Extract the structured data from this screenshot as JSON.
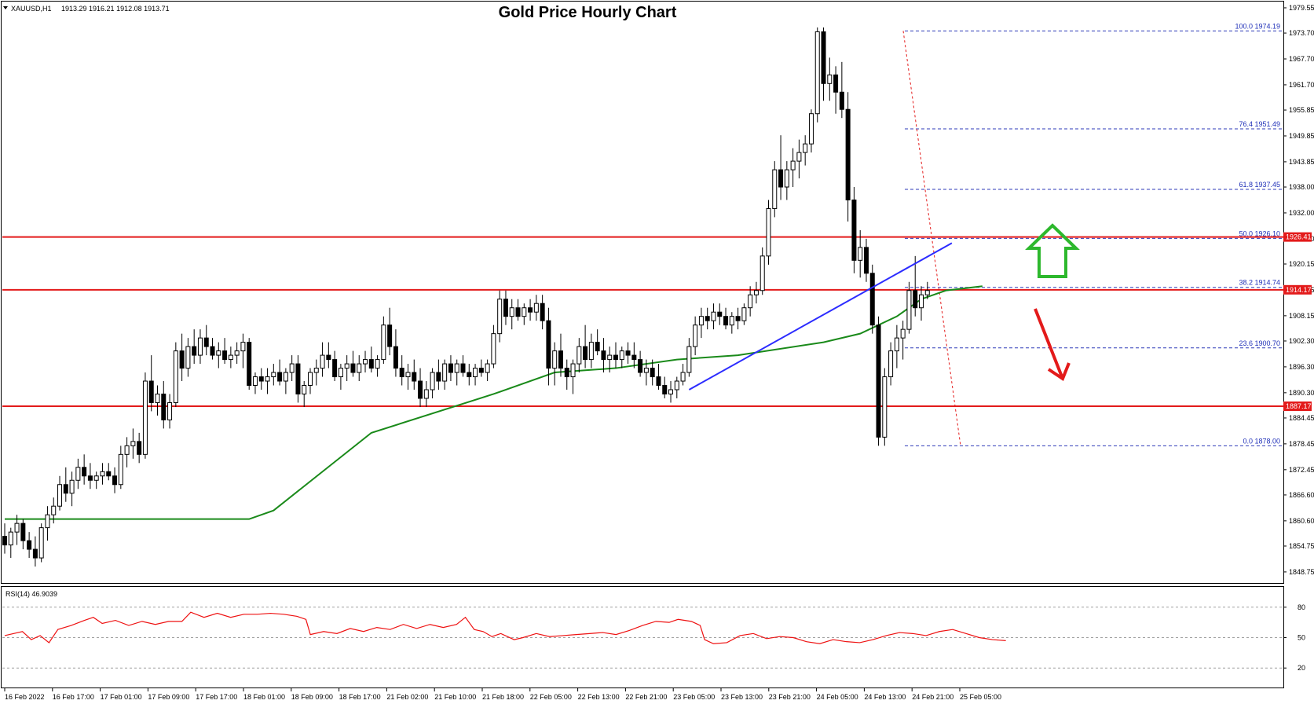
{
  "header": {
    "symbol_label": "XAUUSD,H1",
    "ohlc_label": "1913.29 1916.21 1912.08 1913.71",
    "title": "Gold Price Hourly Chart"
  },
  "rsi_panel": {
    "label": "RSI(14) 46.9039",
    "levels": [
      "80",
      "50",
      "20"
    ]
  },
  "colors": {
    "bull": "#ffffff",
    "bear": "#000000",
    "ma": "#1a8a1a",
    "trendline": "#2c2cff",
    "horizontal": "#e31a1a",
    "fib": "#2e3ab8",
    "rsi": "#ee1111",
    "up_arrow": "#2db82d",
    "down_arrow": "#e31a1a"
  },
  "chart_data": {
    "type": "candlestick",
    "symbol": "XAUUSD",
    "timeframe": "H1",
    "title": "Gold Price Hourly Chart",
    "ylim": [
      1846.0,
      1981.0
    ],
    "price_ticks": [
      "1979.55",
      "1973.70",
      "1967.70",
      "1961.70",
      "1955.85",
      "1949.85",
      "1943.85",
      "1938.00",
      "1932.00",
      "1926.00",
      "1920.15",
      "1914.15",
      "1908.15",
      "1902.30",
      "1896.30",
      "1890.30",
      "1884.45",
      "1878.45",
      "1872.45",
      "1866.60",
      "1860.60",
      "1854.75",
      "1848.75"
    ],
    "time_labels": [
      "16 Feb 2022",
      "16 Feb 17:00",
      "17 Feb 01:00",
      "17 Feb 09:00",
      "17 Feb 17:00",
      "18 Feb 01:00",
      "18 Feb 09:00",
      "18 Feb 17:00",
      "21 Feb 02:00",
      "21 Feb 10:00",
      "21 Feb 18:00",
      "22 Feb 05:00",
      "22 Feb 13:00",
      "22 Feb 21:00",
      "23 Feb 05:00",
      "23 Feb 13:00",
      "23 Feb 21:00",
      "24 Feb 05:00",
      "24 Feb 13:00",
      "24 Feb 21:00",
      "25 Feb 05:00"
    ],
    "ohlc": [
      [
        1857,
        1860,
        1853,
        1855
      ],
      [
        1855,
        1859,
        1852,
        1858
      ],
      [
        1858,
        1862,
        1855,
        1860
      ],
      [
        1860,
        1861,
        1854,
        1856
      ],
      [
        1856,
        1858,
        1852,
        1854
      ],
      [
        1854,
        1857,
        1850,
        1852
      ],
      [
        1852,
        1860,
        1851,
        1859
      ],
      [
        1859,
        1864,
        1856,
        1862
      ],
      [
        1862,
        1866,
        1860,
        1864
      ],
      [
        1864,
        1871,
        1863,
        1869
      ],
      [
        1869,
        1873,
        1865,
        1867
      ],
      [
        1867,
        1872,
        1864,
        1870
      ],
      [
        1870,
        1875,
        1868,
        1873
      ],
      [
        1873,
        1876,
        1869,
        1871
      ],
      [
        1871,
        1874,
        1868,
        1870
      ],
      [
        1870,
        1872,
        1868,
        1871
      ],
      [
        1871,
        1874,
        1869,
        1872
      ],
      [
        1872,
        1874,
        1870,
        1871
      ],
      [
        1871,
        1873,
        1867,
        1869
      ],
      [
        1869,
        1878,
        1868,
        1876
      ],
      [
        1876,
        1880,
        1873,
        1878
      ],
      [
        1878,
        1882,
        1875,
        1879
      ],
      [
        1879,
        1881,
        1874,
        1876
      ],
      [
        1876,
        1895,
        1875,
        1893
      ],
      [
        1893,
        1899,
        1886,
        1888
      ],
      [
        1888,
        1892,
        1885,
        1890
      ],
      [
        1890,
        1893,
        1882,
        1884
      ],
      [
        1884,
        1890,
        1882,
        1888
      ],
      [
        1888,
        1902,
        1887,
        1900
      ],
      [
        1900,
        1904,
        1893,
        1896
      ],
      [
        1896,
        1903,
        1894,
        1901
      ],
      [
        1901,
        1905,
        1897,
        1899
      ],
      [
        1899,
        1905,
        1897,
        1903
      ],
      [
        1903,
        1906,
        1899,
        1901
      ],
      [
        1901,
        1903,
        1898,
        1899
      ],
      [
        1899,
        1902,
        1896,
        1900
      ],
      [
        1900,
        1903,
        1897,
        1898
      ],
      [
        1898,
        1901,
        1896,
        1899
      ],
      [
        1899,
        1902,
        1897,
        1900
      ],
      [
        1900,
        1904,
        1896,
        1902
      ],
      [
        1902,
        1903,
        1891,
        1892
      ],
      [
        1892,
        1895,
        1890,
        1894
      ],
      [
        1894,
        1896,
        1891,
        1893
      ],
      [
        1893,
        1896,
        1890,
        1894
      ],
      [
        1894,
        1897,
        1892,
        1895
      ],
      [
        1895,
        1898,
        1892,
        1893
      ],
      [
        1893,
        1896,
        1890,
        1895
      ],
      [
        1895,
        1899,
        1893,
        1897
      ],
      [
        1897,
        1899,
        1888,
        1890
      ],
      [
        1890,
        1893,
        1887,
        1892
      ],
      [
        1892,
        1896,
        1890,
        1895
      ],
      [
        1895,
        1898,
        1892,
        1896
      ],
      [
        1896,
        1902,
        1894,
        1899
      ],
      [
        1899,
        1902,
        1896,
        1898
      ],
      [
        1898,
        1900,
        1893,
        1894
      ],
      [
        1894,
        1897,
        1891,
        1896
      ],
      [
        1896,
        1899,
        1893,
        1897
      ],
      [
        1897,
        1900,
        1894,
        1895
      ],
      [
        1895,
        1899,
        1893,
        1897
      ],
      [
        1897,
        1900,
        1895,
        1898
      ],
      [
        1898,
        1901,
        1895,
        1896
      ],
      [
        1896,
        1899,
        1894,
        1898
      ],
      [
        1898,
        1908,
        1897,
        1906
      ],
      [
        1906,
        1910,
        1899,
        1901
      ],
      [
        1901,
        1905,
        1894,
        1896
      ],
      [
        1896,
        1899,
        1892,
        1894
      ],
      [
        1894,
        1897,
        1891,
        1895
      ],
      [
        1895,
        1898,
        1891,
        1893
      ],
      [
        1893,
        1896,
        1887,
        1889
      ],
      [
        1889,
        1893,
        1887,
        1891
      ],
      [
        1891,
        1896,
        1889,
        1895
      ],
      [
        1895,
        1898,
        1891,
        1893
      ],
      [
        1893,
        1898,
        1891,
        1897
      ],
      [
        1897,
        1899,
        1893,
        1895
      ],
      [
        1895,
        1898,
        1892,
        1897
      ],
      [
        1897,
        1899,
        1894,
        1895
      ],
      [
        1895,
        1897,
        1892,
        1894
      ],
      [
        1894,
        1897,
        1892,
        1896
      ],
      [
        1896,
        1898,
        1894,
        1895
      ],
      [
        1895,
        1898,
        1893,
        1897
      ],
      [
        1897,
        1906,
        1896,
        1904
      ],
      [
        1904,
        1914,
        1902,
        1912
      ],
      [
        1912,
        1914,
        1906,
        1908
      ],
      [
        1908,
        1912,
        1905,
        1910
      ],
      [
        1910,
        1912,
        1907,
        1908
      ],
      [
        1908,
        1911,
        1906,
        1910
      ],
      [
        1910,
        1912,
        1907,
        1909
      ],
      [
        1909,
        1913,
        1907,
        1911
      ],
      [
        1911,
        1913,
        1905,
        1907
      ],
      [
        1907,
        1910,
        1892,
        1896
      ],
      [
        1896,
        1902,
        1892,
        1900
      ],
      [
        1900,
        1904,
        1894,
        1896
      ],
      [
        1896,
        1898,
        1891,
        1894
      ],
      [
        1894,
        1898,
        1890,
        1897
      ],
      [
        1897,
        1903,
        1895,
        1901
      ],
      [
        1901,
        1906,
        1896,
        1898
      ],
      [
        1898,
        1904,
        1896,
        1902
      ],
      [
        1902,
        1905,
        1899,
        1900
      ],
      [
        1900,
        1903,
        1895,
        1898
      ],
      [
        1898,
        1901,
        1895,
        1899
      ],
      [
        1899,
        1902,
        1896,
        1898
      ],
      [
        1898,
        1901,
        1896,
        1900
      ],
      [
        1900,
        1902,
        1897,
        1899
      ],
      [
        1899,
        1902,
        1896,
        1898
      ],
      [
        1898,
        1900,
        1894,
        1895
      ],
      [
        1895,
        1898,
        1892,
        1896
      ],
      [
        1896,
        1898,
        1892,
        1894
      ],
      [
        1894,
        1897,
        1891,
        1892
      ],
      [
        1892,
        1894,
        1889,
        1890
      ],
      [
        1890,
        1893,
        1888,
        1891
      ],
      [
        1891,
        1894,
        1889,
        1893
      ],
      [
        1893,
        1897,
        1892,
        1895
      ],
      [
        1895,
        1903,
        1894,
        1901
      ],
      [
        1901,
        1908,
        1899,
        1906
      ],
      [
        1906,
        1910,
        1903,
        1908
      ],
      [
        1908,
        1910,
        1905,
        1907
      ],
      [
        1907,
        1911,
        1905,
        1909
      ],
      [
        1909,
        1911,
        1906,
        1908
      ],
      [
        1908,
        1910,
        1905,
        1906
      ],
      [
        1906,
        1909,
        1904,
        1908
      ],
      [
        1908,
        1910,
        1905,
        1907
      ],
      [
        1907,
        1911,
        1906,
        1910
      ],
      [
        1910,
        1915,
        1908,
        1913
      ],
      [
        1913,
        1916,
        1911,
        1914
      ],
      [
        1914,
        1924,
        1913,
        1922
      ],
      [
        1922,
        1935,
        1920,
        1933
      ],
      [
        1933,
        1944,
        1931,
        1942
      ],
      [
        1942,
        1950,
        1935,
        1938
      ],
      [
        1938,
        1944,
        1935,
        1942
      ],
      [
        1942,
        1947,
        1938,
        1944
      ],
      [
        1944,
        1949,
        1940,
        1946
      ],
      [
        1946,
        1950,
        1943,
        1948
      ],
      [
        1948,
        1956,
        1946,
        1955
      ],
      [
        1955,
        1975,
        1953,
        1974
      ],
      [
        1974,
        1975,
        1958,
        1962
      ],
      [
        1962,
        1968,
        1958,
        1964
      ],
      [
        1964,
        1966,
        1955,
        1960
      ],
      [
        1960,
        1967,
        1954,
        1956
      ],
      [
        1956,
        1960,
        1930,
        1935
      ],
      [
        1935,
        1938,
        1918,
        1921
      ],
      [
        1921,
        1928,
        1917,
        1924
      ],
      [
        1924,
        1926,
        1916,
        1918
      ],
      [
        1918,
        1920,
        1904,
        1906
      ],
      [
        1906,
        1908,
        1878,
        1880
      ],
      [
        1880,
        1896,
        1878,
        1894
      ],
      [
        1894,
        1902,
        1892,
        1900
      ],
      [
        1900,
        1906,
        1896,
        1903
      ],
      [
        1903,
        1907,
        1898,
        1905
      ],
      [
        1905,
        1916,
        1904,
        1914
      ],
      [
        1914,
        1922,
        1908,
        1910
      ],
      [
        1910,
        1915,
        1907,
        1913
      ],
      [
        1913,
        1916,
        1912,
        1914
      ]
    ],
    "moving_average": [
      [
        0,
        1861
      ],
      [
        40,
        1861
      ],
      [
        44,
        1863
      ],
      [
        60,
        1881
      ],
      [
        80,
        1890
      ],
      [
        90,
        1895
      ],
      [
        100,
        1896
      ],
      [
        110,
        1898
      ],
      [
        120,
        1899
      ],
      [
        134,
        1902
      ],
      [
        140,
        1904
      ],
      [
        146,
        1908
      ],
      [
        150,
        1912
      ],
      [
        154,
        1914
      ],
      [
        160,
        1915
      ]
    ],
    "trendline": [
      [
        112,
        1891
      ],
      [
        155,
        1925
      ]
    ],
    "horizontal_levels": [
      {
        "price": 1926.41,
        "label": "1926.41"
      },
      {
        "price": 1914.17,
        "label": "1914.17"
      },
      {
        "price": 1887.17,
        "label": "1887.17"
      }
    ],
    "fibonacci": [
      {
        "label": "100.0 1974.19",
        "price": 1974.19
      },
      {
        "label": "76.4 1951.49",
        "price": 1951.49
      },
      {
        "label": "61.8 1937.45",
        "price": 1937.45
      },
      {
        "label": "50.0 1926.10",
        "price": 1926.1
      },
      {
        "label": "38.2 1914.74",
        "price": 1914.74
      },
      {
        "label": "23.6 1900.70",
        "price": 1900.7
      },
      {
        "label": "0.0 1878.00",
        "price": 1878.0
      }
    ],
    "rsi": {
      "name": "RSI(14)",
      "last": 46.9039,
      "ylim": [
        0,
        100
      ],
      "levels": [
        80,
        50,
        20
      ],
      "values": [
        [
          0,
          52
        ],
        [
          4,
          56
        ],
        [
          6,
          48
        ],
        [
          8,
          52
        ],
        [
          10,
          45
        ],
        [
          12,
          58
        ],
        [
          15,
          62
        ],
        [
          18,
          67
        ],
        [
          20,
          70
        ],
        [
          22,
          64
        ],
        [
          25,
          67
        ],
        [
          28,
          62
        ],
        [
          31,
          66
        ],
        [
          34,
          63
        ],
        [
          37,
          66
        ],
        [
          40,
          66
        ],
        [
          42,
          75
        ],
        [
          45,
          70
        ],
        [
          48,
          74
        ],
        [
          51,
          70
        ],
        [
          54,
          73
        ],
        [
          57,
          73
        ],
        [
          60,
          74
        ],
        [
          63,
          73
        ],
        [
          66,
          71
        ],
        [
          68,
          68
        ],
        [
          69,
          53
        ],
        [
          72,
          56
        ],
        [
          75,
          54
        ],
        [
          78,
          59
        ],
        [
          81,
          56
        ],
        [
          84,
          60
        ],
        [
          87,
          58
        ],
        [
          90,
          63
        ],
        [
          93,
          59
        ],
        [
          96,
          63
        ],
        [
          99,
          60
        ],
        [
          102,
          63
        ],
        [
          104,
          70
        ],
        [
          106,
          58
        ],
        [
          108,
          56
        ],
        [
          110,
          51
        ],
        [
          112,
          54
        ],
        [
          115,
          48
        ],
        [
          117,
          50
        ],
        [
          120,
          54
        ],
        [
          123,
          51
        ],
        [
          126,
          52
        ],
        [
          129,
          53
        ],
        [
          132,
          54
        ],
        [
          135,
          55
        ],
        [
          138,
          53
        ],
        [
          141,
          57
        ],
        [
          144,
          62
        ],
        [
          147,
          66
        ],
        [
          150,
          65
        ],
        [
          152,
          68
        ],
        [
          155,
          66
        ],
        [
          157,
          62
        ],
        [
          158,
          48
        ],
        [
          160,
          44
        ],
        [
          163,
          45
        ],
        [
          166,
          52
        ],
        [
          169,
          54
        ],
        [
          172,
          49
        ],
        [
          175,
          51
        ],
        [
          178,
          50
        ],
        [
          181,
          46
        ],
        [
          184,
          44
        ],
        [
          187,
          48
        ],
        [
          190,
          46
        ],
        [
          193,
          45
        ],
        [
          196,
          48
        ],
        [
          199,
          52
        ],
        [
          202,
          55
        ],
        [
          205,
          54
        ],
        [
          208,
          52
        ],
        [
          211,
          56
        ],
        [
          214,
          58
        ],
        [
          217,
          54
        ],
        [
          220,
          50
        ],
        [
          223,
          48
        ],
        [
          226,
          47
        ]
      ]
    }
  }
}
